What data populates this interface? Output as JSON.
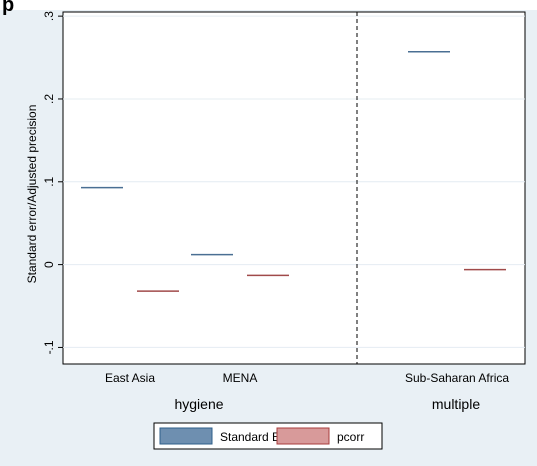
{
  "figure": {
    "title_fragment": "p",
    "bg_color": "#e9f0f5",
    "plot_bg_color": "#ffffff"
  },
  "chart_data": {
    "type": "bar",
    "ylabel": "Standard error/Adjusted precision",
    "ylim": [
      -0.12,
      0.305
    ],
    "yticks": [
      -0.1,
      0,
      0.1,
      0.2,
      0.3
    ],
    "ytick_labels": [
      "-.1",
      "0",
      ".1",
      ".2",
      ".3"
    ],
    "grid": true,
    "marker": "horizontal-line",
    "groups": [
      {
        "label": "hygiene",
        "categories": [
          "East Asia",
          "MENA"
        ]
      },
      {
        "label": "multiple",
        "categories": [
          "Sub-Saharan Africa"
        ]
      }
    ],
    "categories": [
      "East Asia",
      "MENA",
      "Sub-Saharan Africa"
    ],
    "group_separator": "dashed vertical line between hygiene and multiple",
    "series": [
      {
        "name": "Standard Error",
        "color": "#4a6f93",
        "values": [
          0.093,
          0.012,
          0.257
        ]
      },
      {
        "name": "pcorr",
        "color": "#a04a4a",
        "values": [
          -0.032,
          -0.013,
          -0.006
        ]
      }
    ],
    "legend": {
      "position": "bottom",
      "entries": [
        {
          "label": "Standard Error",
          "swatch_color": "#2f5f8a",
          "swatch_fill": "#6e8fb0"
        },
        {
          "label": "pcorr",
          "swatch_color": "#a83c3c",
          "swatch_fill": "#d89a9a"
        }
      ]
    }
  }
}
